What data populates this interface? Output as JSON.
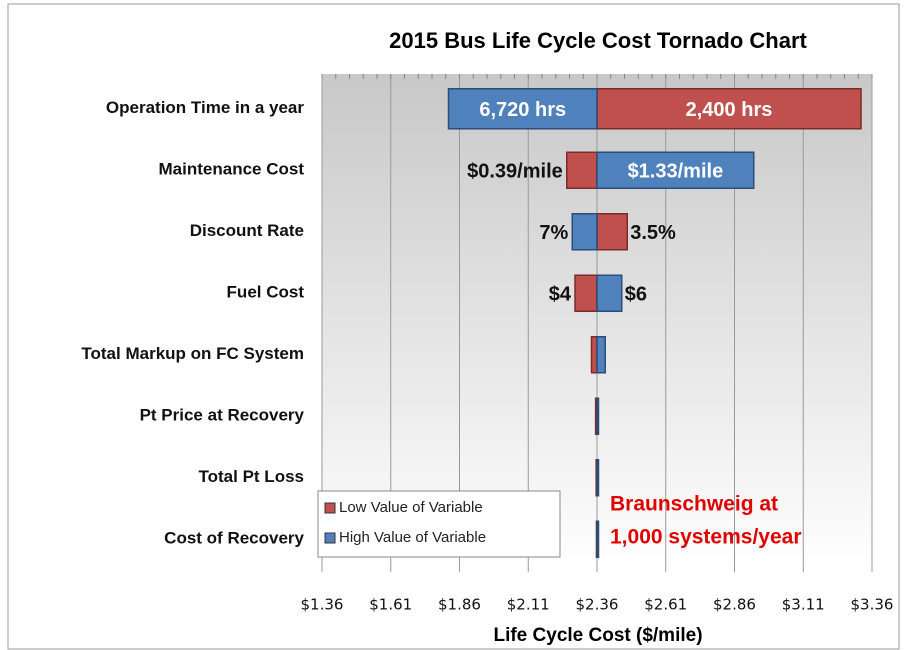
{
  "chart_data": {
    "type": "tornado",
    "title": "2015 Bus Life Cycle Cost Tornado Chart",
    "x_label": "Life Cycle Cost ($/mile)",
    "categories": [
      "Operation Time in a year",
      "Maintenance Cost",
      "Discount Rate",
      "Fuel Cost",
      "Total Markup on FC System",
      "Pt Price at Recovery",
      "Total Pt Loss",
      "Cost of Recovery"
    ],
    "baseline": 2.36,
    "series": [
      {
        "name": "Low Value of Variable",
        "color": "#c0504d",
        "values": [
          3.32,
          2.25,
          2.47,
          2.28,
          2.34,
          2.355,
          2.357,
          2.358
        ],
        "variable_labels": [
          "2,400 hrs",
          "$0.39/mile",
          "3.5%",
          "$4",
          null,
          null,
          null,
          null
        ]
      },
      {
        "name": "High Value of Variable",
        "color": "#4f81bd",
        "values": [
          1.82,
          2.93,
          2.27,
          2.45,
          2.39,
          2.365,
          2.363,
          2.362
        ],
        "variable_labels": [
          "6,720 hrs",
          "$1.33/mile",
          "7%",
          "$6",
          null,
          null,
          null,
          null
        ]
      }
    ],
    "xlim": [
      1.36,
      3.36
    ],
    "xticks": [
      {
        "value": 1.36,
        "label": "$1.36"
      },
      {
        "value": 1.61,
        "label": "$1.61"
      },
      {
        "value": 1.86,
        "label": "$1.86"
      },
      {
        "value": 2.11,
        "label": "$2.11"
      },
      {
        "value": 2.36,
        "label": "$2.36"
      },
      {
        "value": 2.61,
        "label": "$2.61"
      },
      {
        "value": 2.86,
        "label": "$2.86"
      },
      {
        "value": 3.11,
        "label": "$3.11"
      },
      {
        "value": 3.36,
        "label": "$3.36"
      }
    ],
    "grid": true,
    "annotation": [
      "Braunschweig at",
      "1,000 systems/year"
    ]
  }
}
